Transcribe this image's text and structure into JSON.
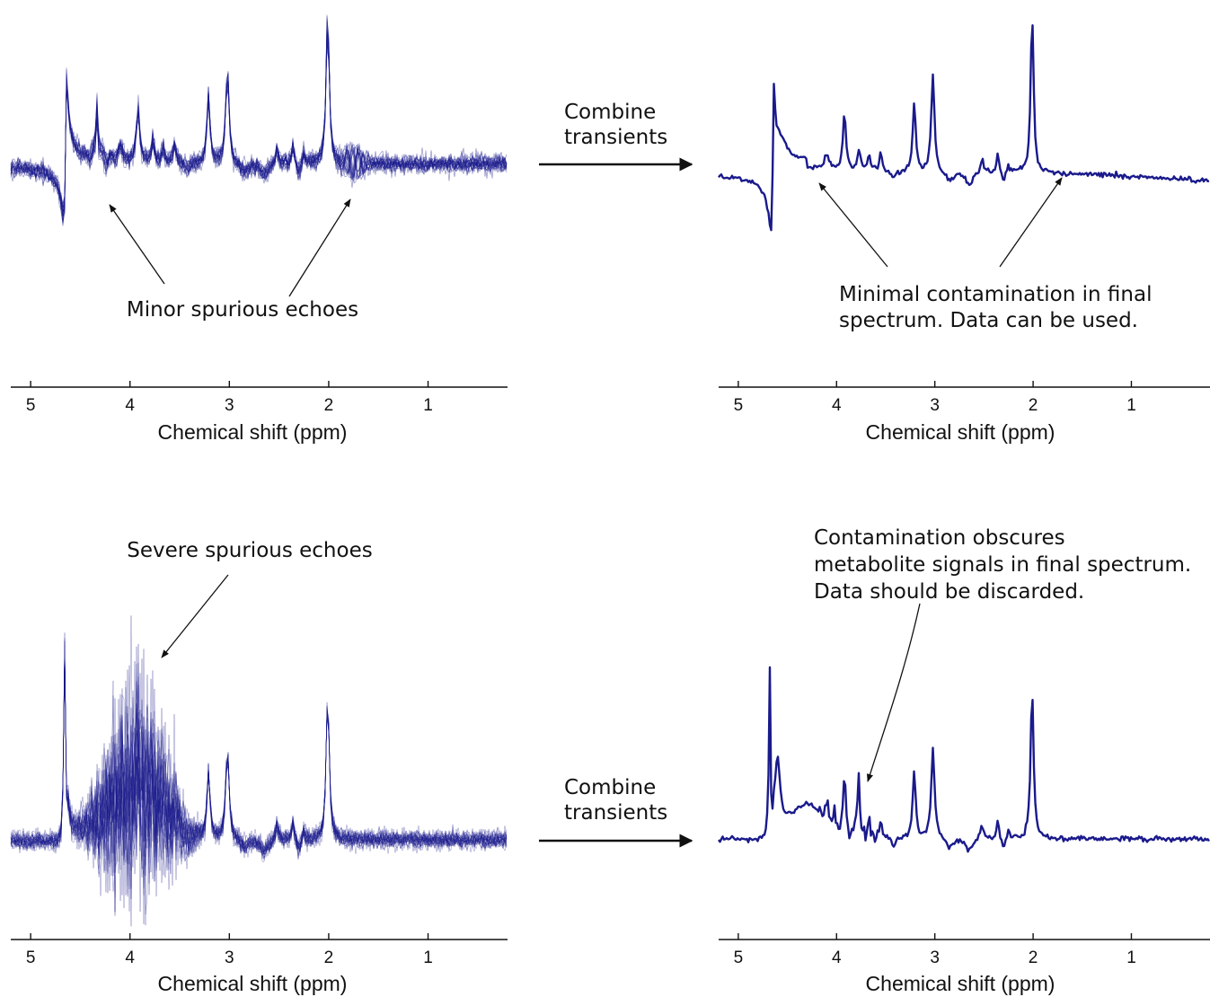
{
  "colors": {
    "spectrum": "#1a1a8c",
    "ink": "#111111"
  },
  "arrow_label_top": [
    "Combine",
    "transients"
  ],
  "arrow_label_bottom": [
    "Combine",
    "transients"
  ],
  "chart_data": [
    {
      "type": "line",
      "panel": "top-left",
      "xlabel": "Chemical shift (ppm)",
      "xlim": [
        5.2,
        0.2
      ],
      "x_reversed": true,
      "xticks": [
        "5",
        "4",
        "3",
        "2",
        "1"
      ],
      "rendering": "overlaid individual transients",
      "peaks_ppm": [
        4.65,
        4.33,
        3.92,
        3.21,
        3.02,
        2.01
      ],
      "annotations": [
        {
          "text": "Minor spurious echoes",
          "points_to_ppm": [
            4.3,
            1.75
          ]
        }
      ]
    },
    {
      "type": "line",
      "panel": "top-right",
      "xlabel": "Chemical shift (ppm)",
      "xlim": [
        5.2,
        0.2
      ],
      "x_reversed": true,
      "xticks": [
        "5",
        "4",
        "3",
        "2",
        "1"
      ],
      "rendering": "combined spectrum",
      "peaks_ppm": [
        4.65,
        3.92,
        3.21,
        3.02,
        2.01
      ],
      "annotations": [
        {
          "text": [
            "Minimal contamination in final",
            "spectrum.  Data can be used."
          ],
          "points_to_ppm": [
            4.2,
            1.75
          ]
        }
      ]
    },
    {
      "type": "line",
      "panel": "bottom-left",
      "xlabel": "Chemical shift (ppm)",
      "xlim": [
        5.2,
        0.2
      ],
      "x_reversed": true,
      "xticks": [
        "5",
        "4",
        "3",
        "2",
        "1"
      ],
      "rendering": "overlaid individual transients",
      "peaks_ppm": [
        4.65,
        3.92,
        3.21,
        3.02,
        2.01
      ],
      "annotations": [
        {
          "text": "Severe spurious echoes",
          "points_to_ppm": [
            3.85
          ]
        }
      ]
    },
    {
      "type": "line",
      "panel": "bottom-right",
      "xlabel": "Chemical shift (ppm)",
      "xlim": [
        5.2,
        0.2
      ],
      "x_reversed": true,
      "xticks": [
        "5",
        "4",
        "3",
        "2",
        "1"
      ],
      "rendering": "combined spectrum",
      "peaks_ppm": [
        4.68,
        3.92,
        3.78,
        3.21,
        3.02,
        2.01
      ],
      "annotations": [
        {
          "text": [
            "Contamination obscures",
            "metabolite signals in final spectrum.",
            "Data should be discarded."
          ],
          "points_to_ppm": [
            3.72
          ]
        }
      ]
    }
  ]
}
